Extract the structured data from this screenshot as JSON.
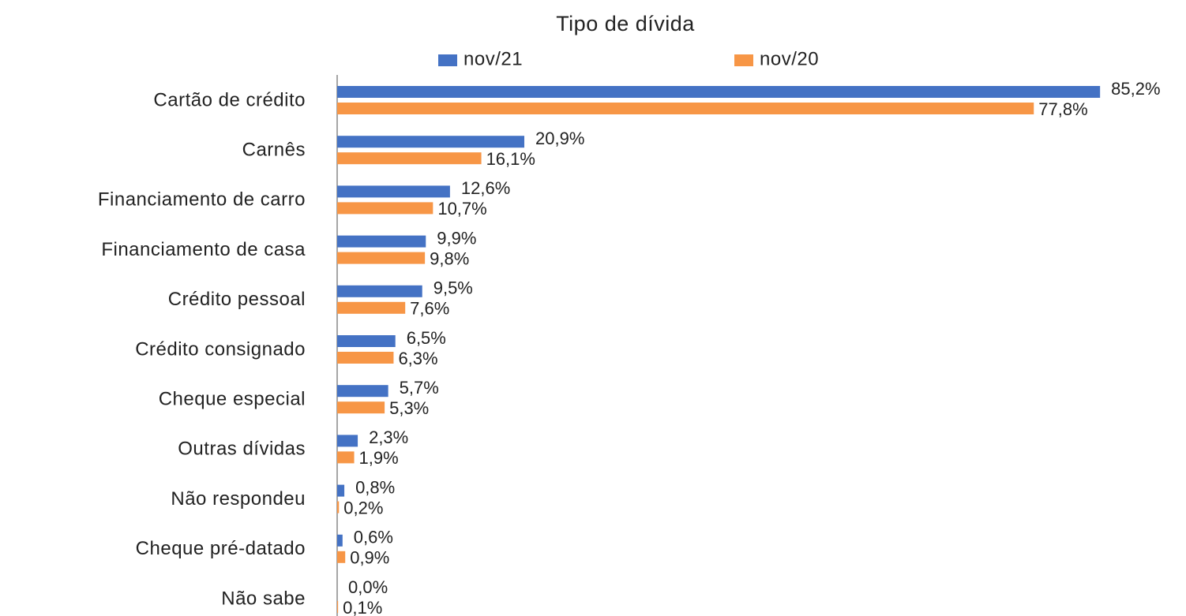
{
  "chart_data": {
    "type": "bar",
    "orientation": "horizontal",
    "title": "Tipo de dívida",
    "categories": [
      "Cartão de crédito",
      "Carnês",
      "Financiamento de carro",
      "Financiamento de casa",
      "Crédito pessoal",
      "Crédito consignado",
      "Cheque especial",
      "Outras dívidas",
      "Não respondeu",
      "Cheque pré-datado",
      "Não sabe"
    ],
    "series": [
      {
        "name": "nov/21",
        "color": "#4472c4",
        "values": [
          85.2,
          20.9,
          12.6,
          9.9,
          9.5,
          6.5,
          5.7,
          2.3,
          0.8,
          0.6,
          0.0
        ],
        "value_labels": [
          "85,2%",
          "20,9%",
          "12,6%",
          "9,9%",
          "9,5%",
          "6,5%",
          "5,7%",
          "2,3%",
          "0,8%",
          "0,6%",
          "0,0%"
        ]
      },
      {
        "name": "nov/20",
        "color": "#f79646",
        "values": [
          77.8,
          16.1,
          10.7,
          9.8,
          7.6,
          6.3,
          5.3,
          1.9,
          0.2,
          0.9,
          0.1
        ],
        "value_labels": [
          "77,8%",
          "16,1%",
          "10,7%",
          "9,8%",
          "7,6%",
          "6,3%",
          "5,3%",
          "1,9%",
          "0,2%",
          "0,9%",
          "0,1%"
        ]
      }
    ]
  }
}
